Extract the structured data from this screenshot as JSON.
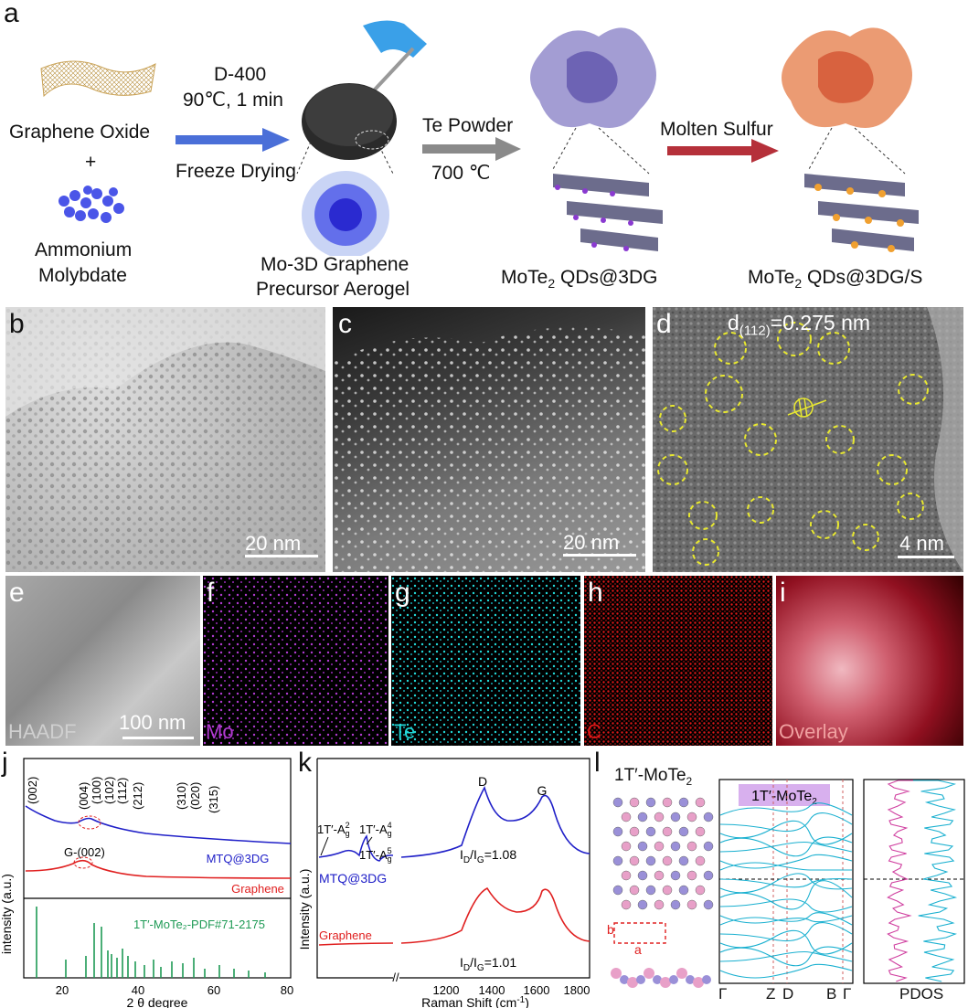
{
  "panel_a": {
    "label": "a",
    "graphene_oxide": "Graphene Oxide",
    "plus": "+",
    "ammonium": "Ammonium",
    "molybdate": "Molybdate",
    "step1_top1": "D-400",
    "step1_top2": "90℃, 1 min",
    "step1_bottom": "Freeze Drying",
    "precursor_1": "Mo-3D Graphene",
    "precursor_2": "Precursor Aerogel",
    "step2_top": "Te Powder",
    "step2_bottom": "700 ℃",
    "product1_a": "MoTe",
    "product1_sub": "2",
    "product1_b": " QDs@3DG",
    "step3_top": "Molten Sulfur",
    "product2_a": "MoTe",
    "product2_sub": "2",
    "product2_b": " QDs@3DG/S",
    "colors": {
      "arrow1": "#4a6fd8",
      "arrow2": "#8a8a8a",
      "arrow3": "#b5303a"
    }
  },
  "panel_b": {
    "label": "b",
    "scale": "20 nm"
  },
  "panel_c": {
    "label": "c",
    "scale": "20 nm"
  },
  "panel_d": {
    "label": "d",
    "d_prefix": "d",
    "d_sub": "(112)",
    "d_value": "=0.275 nm",
    "scale": "4 nm"
  },
  "eds": [
    {
      "panel": "e",
      "name": "HAADF",
      "scale": "100 nm",
      "color": "#cfcfcf"
    },
    {
      "panel": "f",
      "name": "Mo",
      "color": "#b03ad0"
    },
    {
      "panel": "g",
      "name": "Te",
      "color": "#22d8d8"
    },
    {
      "panel": "h",
      "name": "C",
      "color": "#e01818"
    },
    {
      "panel": "i",
      "name": "Overlay",
      "color": "#e05050"
    }
  ],
  "panel_j": {
    "label": "j",
    "ylabel": "intensity (a.u.)",
    "xlabel": "2 θ degree",
    "xticks": [
      "20",
      "40",
      "60",
      "80"
    ],
    "peaks": [
      "(002)",
      "(004)",
      "(100)",
      "(102)",
      "(112)",
      "(212)",
      "(310)",
      "(020)",
      "(315)"
    ],
    "g002": "G-(002)",
    "series": [
      "MTQ@3DG",
      "Graphene"
    ],
    "ref": "1T′-MoTe₂-PDF#71-2175",
    "colors": {
      "mtq": "#2020c8",
      "graphene": "#e02020",
      "ref": "#1e9a55"
    }
  },
  "panel_k": {
    "label": "k",
    "ylabel": "Intensity (a.u.)",
    "xlabel": "Raman Shift (cm",
    "xlabel_sup": "-1",
    "xlabel_end": ")",
    "xticks": [
      "1200",
      "1400",
      "1600",
      "1800"
    ],
    "peak_D": "D",
    "peak_G": "G",
    "a2": "1T′-A",
    "a2_sup": "2",
    "a4": "1T′-A",
    "a4_sup": "4",
    "a5": "1T′-A",
    "a5_sup": "5",
    "a_sub": "g",
    "ratio1": "=1.08",
    "ratio2": "=1.01",
    "ratio_prefix": "I",
    "ratio_sub_D": "D",
    "ratio_mid": "/I",
    "ratio_sub_G": "G",
    "series": [
      "MTQ@3DG",
      "Graphene"
    ]
  },
  "panel_l": {
    "label": "l",
    "title": "1T′-MoTe",
    "title_sub": "2",
    "band_title": "1T′-MoTe",
    "band_title_sub": "2",
    "b": "b",
    "a": "a",
    "kpoints": [
      "Γ",
      "Z",
      "D",
      "B",
      "Γ"
    ],
    "pdos": "PDOS"
  }
}
